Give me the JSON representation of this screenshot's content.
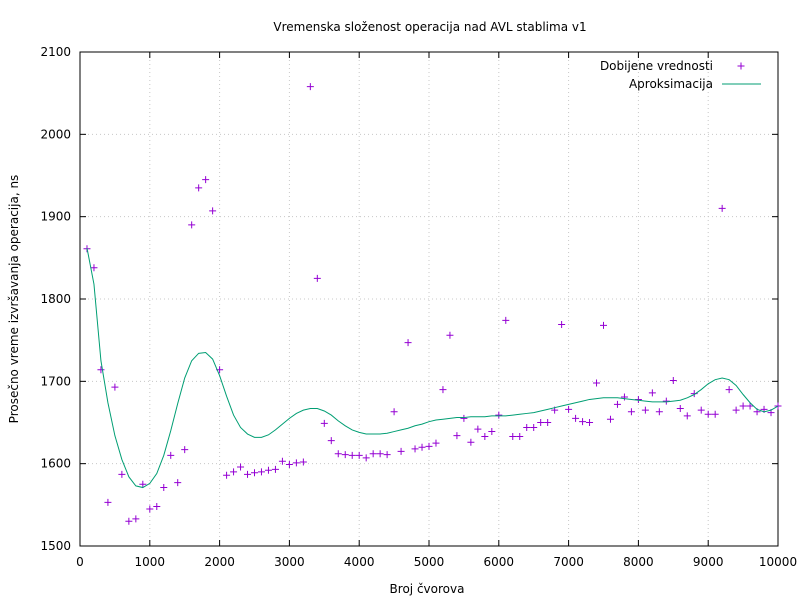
{
  "chart_data": {
    "type": "scatter",
    "title": "Vremenska složenost operacija nad AVL stablima v1",
    "xlabel": "Broj čvorova",
    "ylabel": "Prosečno vreme izvršavanja operacija, ns",
    "xlim": [
      0,
      10000
    ],
    "ylim": [
      1500,
      2100
    ],
    "x_ticks": [
      0,
      1000,
      2000,
      3000,
      4000,
      5000,
      6000,
      7000,
      8000,
      9000,
      10000
    ],
    "y_ticks": [
      1500,
      1600,
      1700,
      1800,
      1900,
      2000,
      2100
    ],
    "grid": true,
    "legend_position": "top-right",
    "series": [
      {
        "name": "Dobijene vrednosti",
        "kind": "points",
        "marker": "plus",
        "color": "#9400d3",
        "points": [
          [
            100,
            1861
          ],
          [
            200,
            1838
          ],
          [
            300,
            1714
          ],
          [
            400,
            1553
          ],
          [
            500,
            1693
          ],
          [
            600,
            1587
          ],
          [
            700,
            1530
          ],
          [
            800,
            1533
          ],
          [
            900,
            1575
          ],
          [
            1000,
            1545
          ],
          [
            1100,
            1548
          ],
          [
            1200,
            1571
          ],
          [
            1300,
            1610
          ],
          [
            1400,
            1577
          ],
          [
            1500,
            1617
          ],
          [
            1600,
            1890
          ],
          [
            1700,
            1935
          ],
          [
            1800,
            1945
          ],
          [
            1900,
            1907
          ],
          [
            2000,
            1714
          ],
          [
            2100,
            1586
          ],
          [
            2200,
            1590
          ],
          [
            2300,
            1596
          ],
          [
            2400,
            1587
          ],
          [
            2500,
            1589
          ],
          [
            2600,
            1590
          ],
          [
            2700,
            1592
          ],
          [
            2800,
            1593
          ],
          [
            2900,
            1603
          ],
          [
            3000,
            1599
          ],
          [
            3100,
            1601
          ],
          [
            3200,
            1602
          ],
          [
            3300,
            2058
          ],
          [
            3400,
            1825
          ],
          [
            3500,
            1649
          ],
          [
            3600,
            1628
          ],
          [
            3700,
            1612
          ],
          [
            3800,
            1611
          ],
          [
            3900,
            1610
          ],
          [
            4000,
            1610
          ],
          [
            4100,
            1607
          ],
          [
            4200,
            1612
          ],
          [
            4300,
            1612
          ],
          [
            4400,
            1611
          ],
          [
            4500,
            1663
          ],
          [
            4600,
            1615
          ],
          [
            4700,
            1747
          ],
          [
            4800,
            1618
          ],
          [
            4900,
            1620
          ],
          [
            5000,
            1621
          ],
          [
            5100,
            1625
          ],
          [
            5200,
            1690
          ],
          [
            5300,
            1756
          ],
          [
            5400,
            1634
          ],
          [
            5500,
            1655
          ],
          [
            5600,
            1626
          ],
          [
            5700,
            1642
          ],
          [
            5800,
            1633
          ],
          [
            5900,
            1639
          ],
          [
            6000,
            1659
          ],
          [
            6100,
            1774
          ],
          [
            6200,
            1633
          ],
          [
            6300,
            1633
          ],
          [
            6400,
            1644
          ],
          [
            6500,
            1644
          ],
          [
            6600,
            1650
          ],
          [
            6700,
            1650
          ],
          [
            6800,
            1665
          ],
          [
            6900,
            1769
          ],
          [
            7000,
            1666
          ],
          [
            7100,
            1655
          ],
          [
            7200,
            1651
          ],
          [
            7300,
            1650
          ],
          [
            7400,
            1698
          ],
          [
            7500,
            1768
          ],
          [
            7600,
            1654
          ],
          [
            7700,
            1672
          ],
          [
            7800,
            1681
          ],
          [
            7900,
            1663
          ],
          [
            8000,
            1678
          ],
          [
            8100,
            1665
          ],
          [
            8200,
            1686
          ],
          [
            8300,
            1663
          ],
          [
            8400,
            1676
          ],
          [
            8500,
            1701
          ],
          [
            8600,
            1667
          ],
          [
            8700,
            1658
          ],
          [
            8800,
            1685
          ],
          [
            8900,
            1665
          ],
          [
            9000,
            1660
          ],
          [
            9100,
            1660
          ],
          [
            9200,
            1910
          ],
          [
            9300,
            1690
          ],
          [
            9400,
            1665
          ],
          [
            9500,
            1670
          ],
          [
            9600,
            1670
          ],
          [
            9700,
            1663
          ],
          [
            9800,
            1666
          ],
          [
            9900,
            1662
          ],
          [
            10000,
            1670
          ]
        ]
      },
      {
        "name": "Aproksimacija",
        "kind": "line",
        "color": "#009e73",
        "points": [
          [
            100,
            1862
          ],
          [
            200,
            1818
          ],
          [
            300,
            1725
          ],
          [
            400,
            1674
          ],
          [
            500,
            1634
          ],
          [
            600,
            1605
          ],
          [
            700,
            1584
          ],
          [
            800,
            1573
          ],
          [
            900,
            1571
          ],
          [
            1000,
            1576
          ],
          [
            1100,
            1588
          ],
          [
            1200,
            1610
          ],
          [
            1300,
            1640
          ],
          [
            1400,
            1673
          ],
          [
            1500,
            1704
          ],
          [
            1600,
            1725
          ],
          [
            1700,
            1734
          ],
          [
            1800,
            1735
          ],
          [
            1900,
            1727
          ],
          [
            2000,
            1707
          ],
          [
            2100,
            1682
          ],
          [
            2200,
            1659
          ],
          [
            2300,
            1644
          ],
          [
            2400,
            1636
          ],
          [
            2500,
            1632
          ],
          [
            2600,
            1632
          ],
          [
            2700,
            1635
          ],
          [
            2800,
            1641
          ],
          [
            2900,
            1648
          ],
          [
            3000,
            1655
          ],
          [
            3100,
            1661
          ],
          [
            3200,
            1665
          ],
          [
            3300,
            1667
          ],
          [
            3400,
            1667
          ],
          [
            3500,
            1664
          ],
          [
            3600,
            1659
          ],
          [
            3700,
            1652
          ],
          [
            3800,
            1646
          ],
          [
            3900,
            1641
          ],
          [
            4000,
            1638
          ],
          [
            4100,
            1636
          ],
          [
            4200,
            1636
          ],
          [
            4300,
            1636
          ],
          [
            4400,
            1637
          ],
          [
            4500,
            1639
          ],
          [
            4600,
            1641
          ],
          [
            4700,
            1643
          ],
          [
            4800,
            1646
          ],
          [
            4900,
            1648
          ],
          [
            5000,
            1651
          ],
          [
            5100,
            1653
          ],
          [
            5200,
            1654
          ],
          [
            5300,
            1655
          ],
          [
            5400,
            1656
          ],
          [
            5500,
            1656
          ],
          [
            5600,
            1657
          ],
          [
            5700,
            1657
          ],
          [
            5800,
            1657
          ],
          [
            5900,
            1658
          ],
          [
            6000,
            1658
          ],
          [
            6100,
            1658
          ],
          [
            6200,
            1659
          ],
          [
            6300,
            1660
          ],
          [
            6400,
            1661
          ],
          [
            6500,
            1662
          ],
          [
            6600,
            1664
          ],
          [
            6700,
            1666
          ],
          [
            6800,
            1668
          ],
          [
            6900,
            1670
          ],
          [
            7000,
            1672
          ],
          [
            7100,
            1674
          ],
          [
            7200,
            1676
          ],
          [
            7300,
            1678
          ],
          [
            7400,
            1679
          ],
          [
            7500,
            1680
          ],
          [
            7600,
            1680
          ],
          [
            7700,
            1680
          ],
          [
            7800,
            1679
          ],
          [
            7900,
            1678
          ],
          [
            8000,
            1677
          ],
          [
            8100,
            1676
          ],
          [
            8200,
            1675
          ],
          [
            8300,
            1675
          ],
          [
            8400,
            1675
          ],
          [
            8500,
            1676
          ],
          [
            8600,
            1677
          ],
          [
            8700,
            1680
          ],
          [
            8800,
            1684
          ],
          [
            8900,
            1690
          ],
          [
            9000,
            1697
          ],
          [
            9100,
            1702
          ],
          [
            9200,
            1704
          ],
          [
            9300,
            1702
          ],
          [
            9400,
            1695
          ],
          [
            9500,
            1684
          ],
          [
            9600,
            1674
          ],
          [
            9700,
            1666
          ],
          [
            9800,
            1663
          ],
          [
            9900,
            1665
          ],
          [
            10000,
            1670
          ]
        ]
      }
    ]
  }
}
